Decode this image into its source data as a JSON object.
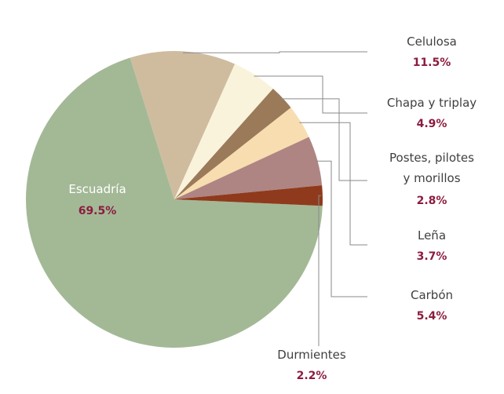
{
  "chart_data": {
    "type": "pie",
    "title": "",
    "unit": "%",
    "slices": [
      {
        "label": "Escuadría",
        "value": 69.5,
        "display": "69.5%",
        "color": "#a3b996"
      },
      {
        "label": "Celulosa",
        "value": 11.5,
        "display": "11.5%",
        "color": "#cfbc9f"
      },
      {
        "label": "Chapa y triplay",
        "value": 4.9,
        "display": "4.9%",
        "color": "#faf3dc"
      },
      {
        "label": "Postes, pilotes y morillos",
        "label_lines": [
          "Postes, pilotes",
          "y morillos"
        ],
        "value": 2.8,
        "display": "2.8%",
        "color": "#9a7a59"
      },
      {
        "label": "Leña",
        "value": 3.7,
        "display": "3.7%",
        "color": "#f7ddb0"
      },
      {
        "label": "Carbón",
        "value": 5.4,
        "display": "5.4%",
        "color": "#ae8582"
      },
      {
        "label": "Durmientes",
        "value": 2.2,
        "display": "2.2%",
        "color": "#8f3a1c"
      }
    ]
  }
}
